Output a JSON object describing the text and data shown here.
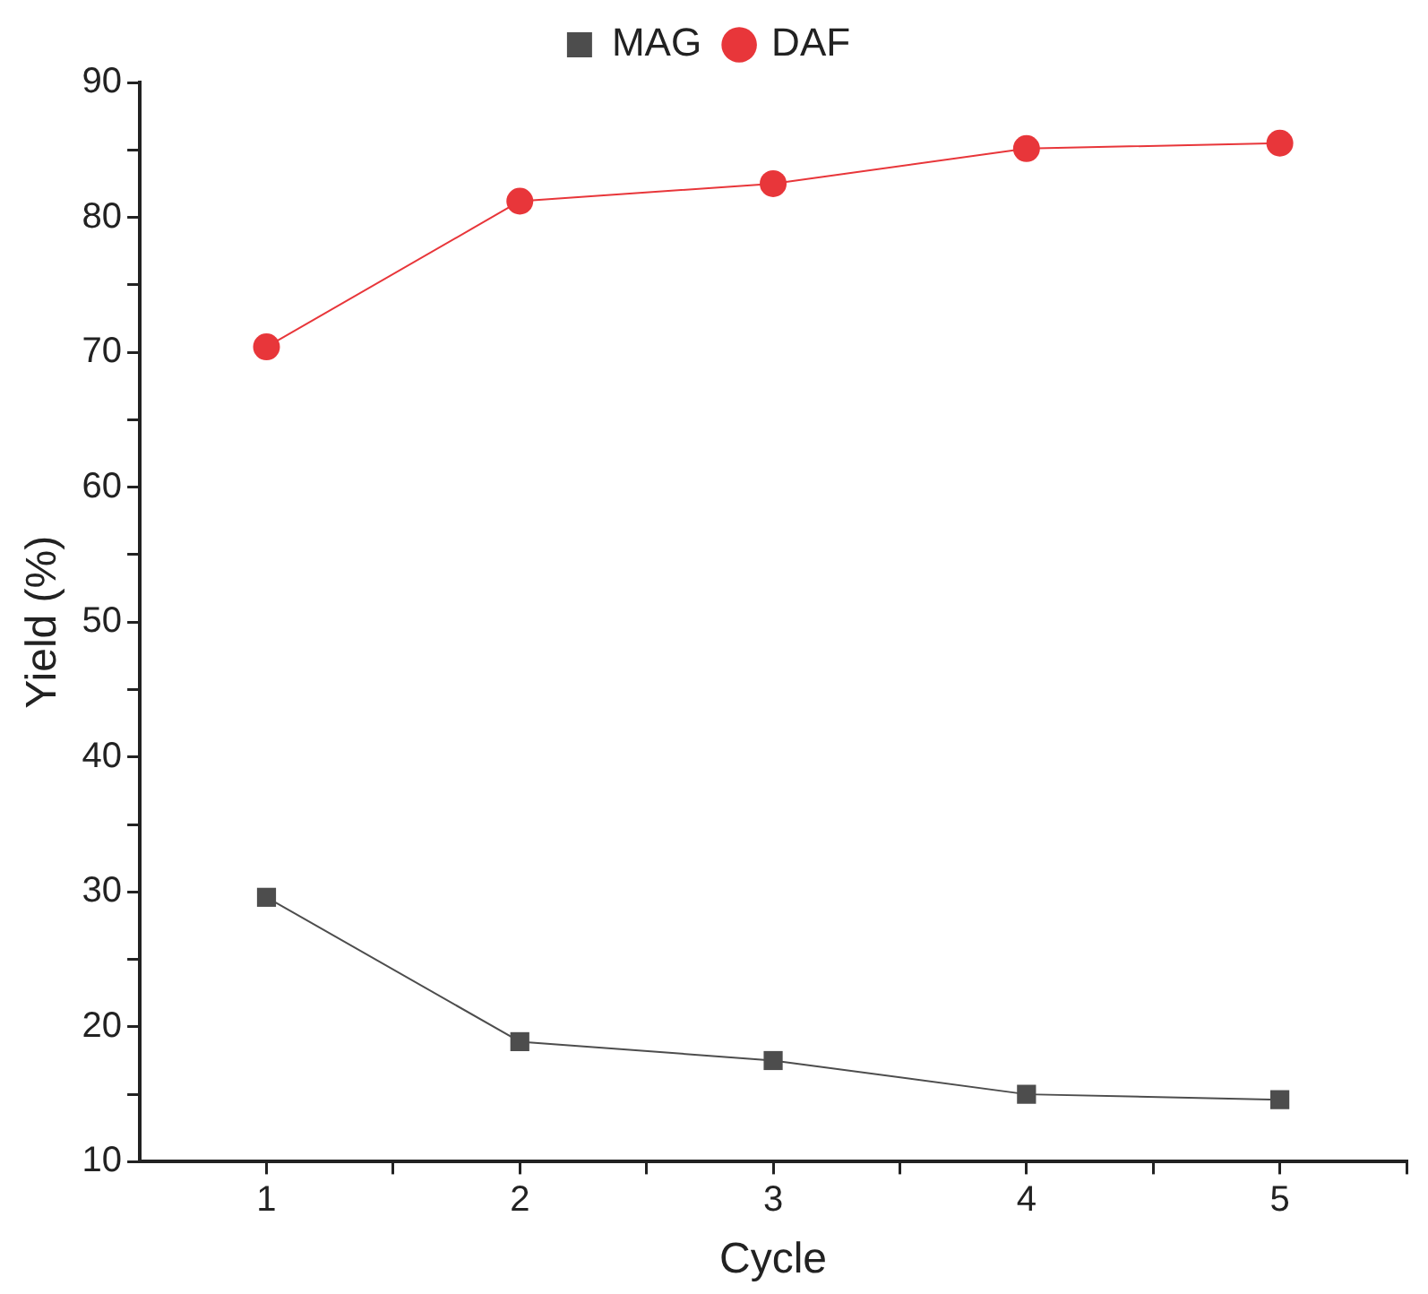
{
  "chart_data": {
    "type": "line",
    "xlabel": "Cycle",
    "ylabel": "Yield (%)",
    "x": [
      1,
      2,
      3,
      4,
      5
    ],
    "series": [
      {
        "name": "MAG",
        "color": "#4d4d4d",
        "marker": "square",
        "values": [
          29.6,
          18.9,
          17.5,
          15.0,
          14.6
        ]
      },
      {
        "name": "DAF",
        "color": "#e8363a",
        "marker": "circle",
        "values": [
          70.4,
          81.2,
          82.5,
          85.1,
          85.5
        ]
      }
    ],
    "xlim": [
      0.5,
      5.5
    ],
    "xticks": [
      1,
      {
        "value": 1.5,
        "label": null
      },
      2,
      {
        "value": 2.5,
        "label": null
      },
      3,
      {
        "value": 3.5,
        "label": null
      },
      4,
      {
        "value": 4.5,
        "label": null
      },
      5,
      {
        "value": 5.5,
        "label": null
      }
    ],
    "ylim": [
      10,
      90
    ],
    "yticks": [
      10,
      {
        "value": 15,
        "label": null
      },
      20,
      {
        "value": 25,
        "label": null
      },
      30,
      {
        "value": 35,
        "label": null
      },
      40,
      {
        "value": 45,
        "label": null
      },
      50,
      {
        "value": 55,
        "label": null
      },
      60,
      {
        "value": 65,
        "label": null
      },
      70,
      {
        "value": 75,
        "label": null
      },
      80,
      {
        "value": 85,
        "label": null
      },
      90
    ],
    "grid": false,
    "legend": "top",
    "line_style": "solid"
  }
}
